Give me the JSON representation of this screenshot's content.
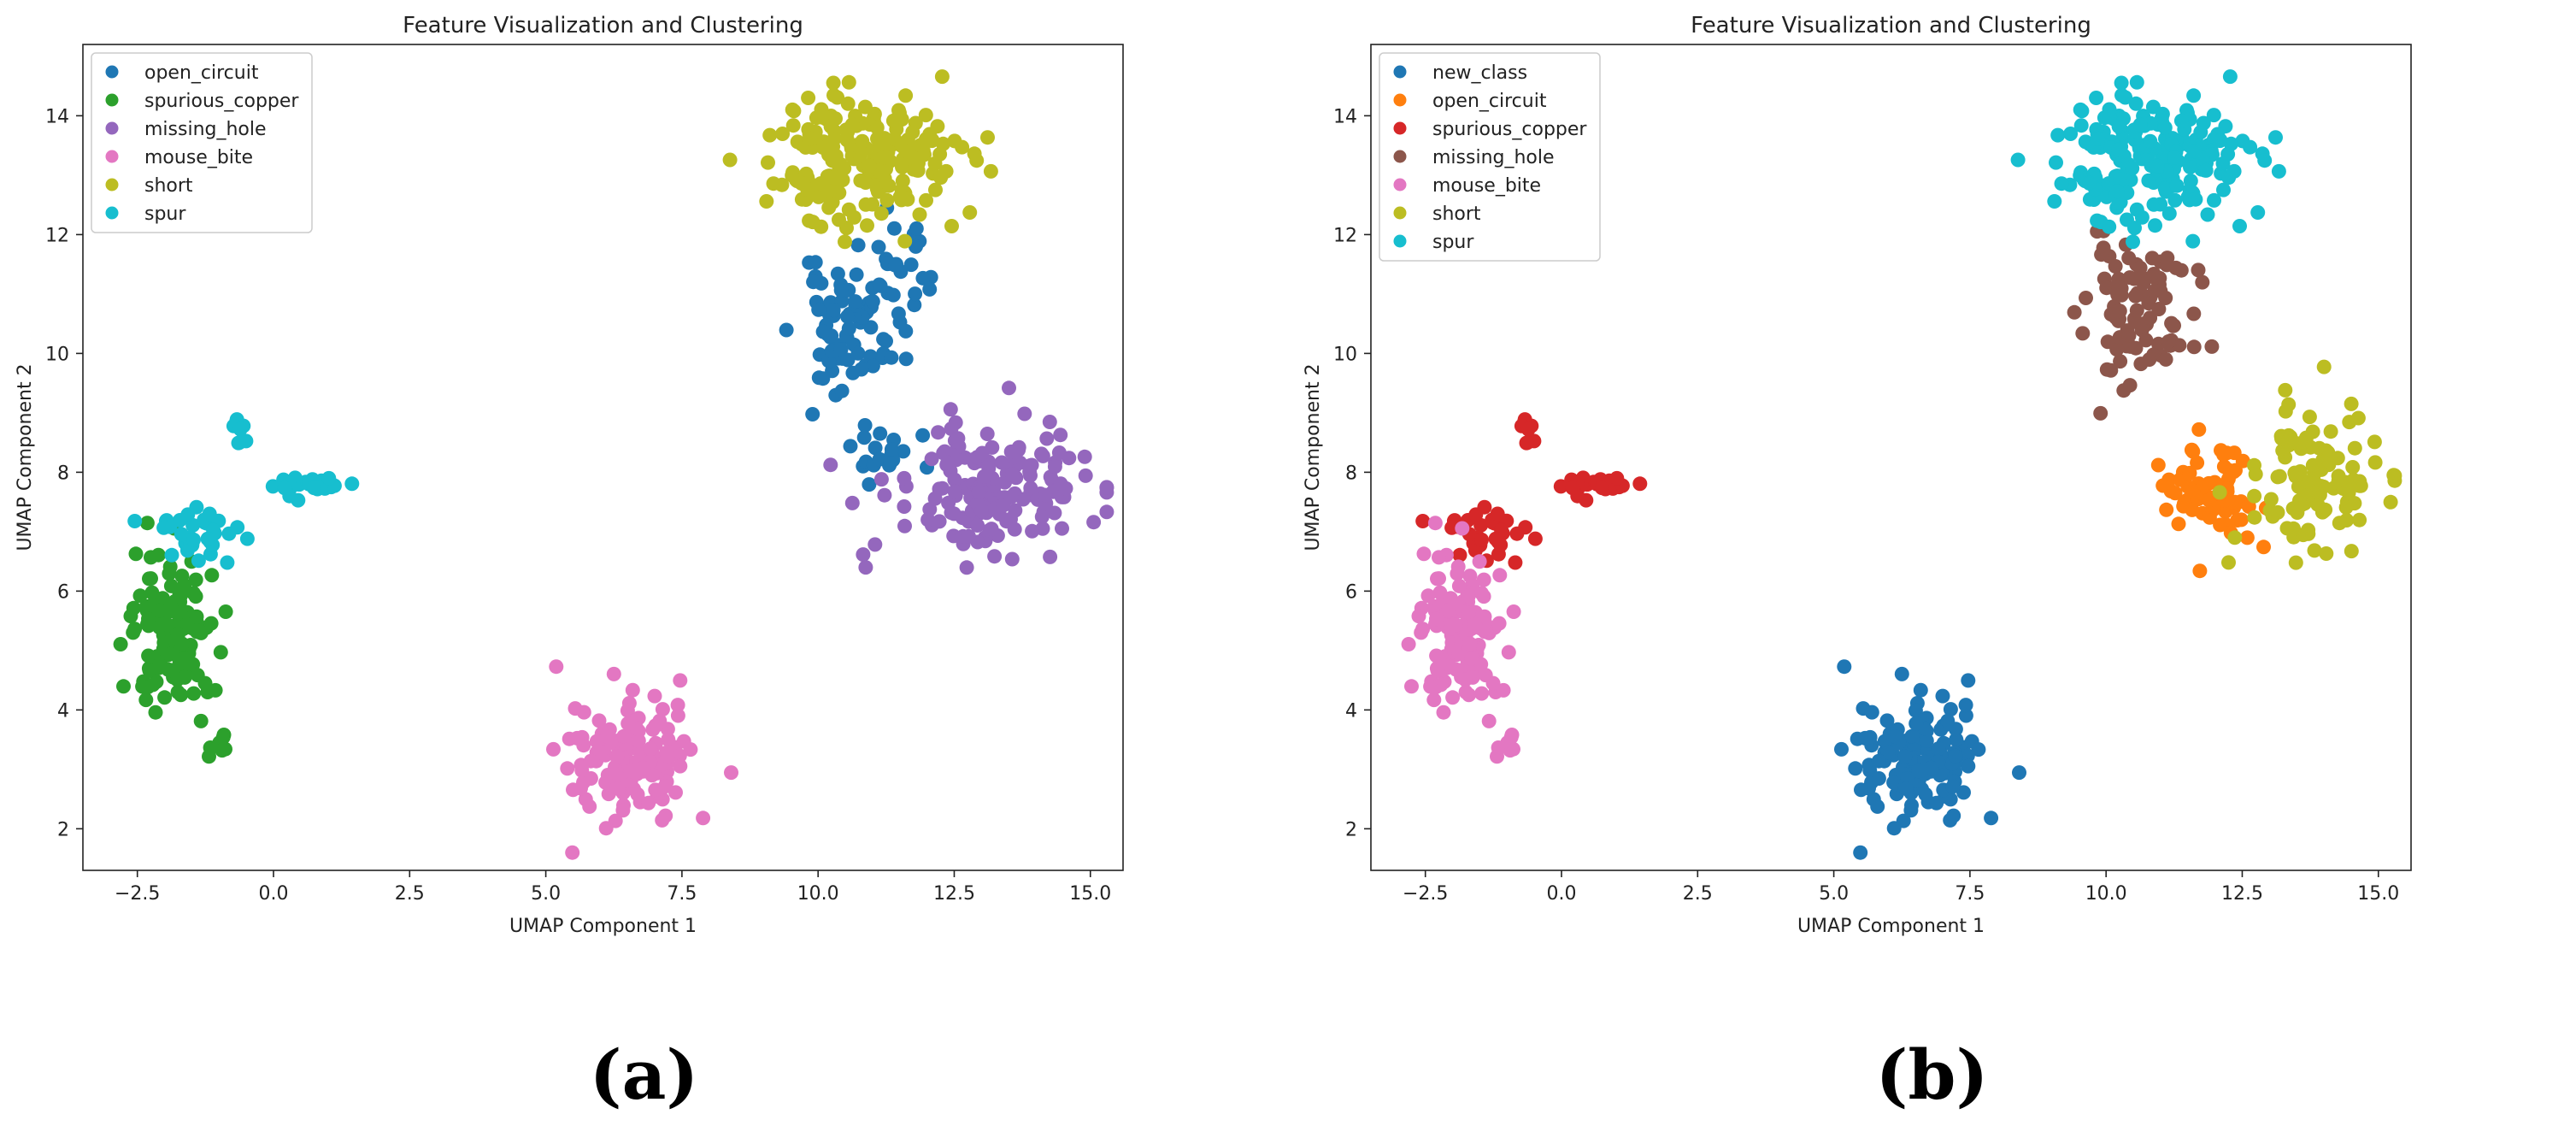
{
  "chart_data": [
    {
      "panel_label": "(a)",
      "type": "scatter",
      "title": "Feature Visualization and Clustering",
      "xlabel": "UMAP Component 1",
      "ylabel": "UMAP Component 2",
      "xlim": [
        -3.5,
        15.6
      ],
      "ylim": [
        1.3,
        15.2
      ],
      "xticks": [
        -2.5,
        0.0,
        2.5,
        5.0,
        7.5,
        10.0,
        12.5,
        15.0
      ],
      "xtick_labels": [
        "−2.5",
        "0.0",
        "2.5",
        "5.0",
        "7.5",
        "10.0",
        "12.5",
        "15.0"
      ],
      "yticks": [
        2,
        4,
        6,
        8,
        10,
        12,
        14
      ],
      "ytick_labels": [
        "2",
        "4",
        "6",
        "8",
        "10",
        "12",
        "14"
      ],
      "legend_position": "top-left",
      "series": [
        {
          "name": "open_circuit",
          "color": "#1f77b4",
          "clusters": [
            {
              "cx": 10.6,
              "cy": 10.4,
              "sx": 0.5,
              "sy": 0.5,
              "n": 70,
              "seed": 11
            },
            {
              "cx": 11.3,
              "cy": 11.5,
              "sx": 0.4,
              "sy": 0.4,
              "n": 25,
              "seed": 12
            },
            {
              "cx": 11.1,
              "cy": 8.35,
              "sx": 0.35,
              "sy": 0.2,
              "n": 20,
              "seed": 13
            }
          ]
        },
        {
          "name": "spurious_copper",
          "color": "#2ca02c",
          "clusters": [
            {
              "cx": -1.9,
              "cy": 5.3,
              "sx": 0.4,
              "sy": 0.7,
              "n": 130,
              "seed": 21
            },
            {
              "cx": -1.0,
              "cy": 3.4,
              "sx": 0.1,
              "sy": 0.1,
              "n": 6,
              "seed": 22
            }
          ]
        },
        {
          "name": "missing_hole",
          "color": "#9467bd",
          "clusters": [
            {
              "cx": 13.2,
              "cy": 7.7,
              "sx": 0.9,
              "sy": 0.55,
              "n": 170,
              "seed": 31
            }
          ]
        },
        {
          "name": "mouse_bite",
          "color": "#e377c2",
          "clusters": [
            {
              "cx": 6.6,
              "cy": 3.2,
              "sx": 0.55,
              "sy": 0.55,
              "n": 140,
              "seed": 41
            }
          ]
        },
        {
          "name": "short",
          "color": "#bcbd22",
          "clusters": [
            {
              "cx": 10.7,
              "cy": 13.2,
              "sx": 0.85,
              "sy": 0.55,
              "n": 200,
              "seed": 51
            }
          ]
        },
        {
          "name": "spur",
          "color": "#17becf",
          "clusters": [
            {
              "cx": 0.6,
              "cy": 7.8,
              "sx": 0.45,
              "sy": 0.08,
              "n": 30,
              "seed": 61
            },
            {
              "cx": -1.5,
              "cy": 7.0,
              "sx": 0.5,
              "sy": 0.3,
              "n": 35,
              "seed": 62
            },
            {
              "cx": -0.7,
              "cy": 8.6,
              "sx": 0.1,
              "sy": 0.12,
              "n": 8,
              "seed": 63
            }
          ]
        }
      ]
    },
    {
      "panel_label": "(b)",
      "type": "scatter",
      "title": "Feature Visualization and Clustering",
      "xlabel": "UMAP Component 1",
      "ylabel": "UMAP Component 2",
      "xlim": [
        -3.5,
        15.6
      ],
      "ylim": [
        1.3,
        15.2
      ],
      "xticks": [
        -2.5,
        0.0,
        2.5,
        5.0,
        7.5,
        10.0,
        12.5,
        15.0
      ],
      "xtick_labels": [
        "−2.5",
        "0.0",
        "2.5",
        "5.0",
        "7.5",
        "10.0",
        "12.5",
        "15.0"
      ],
      "yticks": [
        2,
        4,
        6,
        8,
        10,
        12,
        14
      ],
      "ytick_labels": [
        "2",
        "4",
        "6",
        "8",
        "10",
        "12",
        "14"
      ],
      "legend_position": "top-left",
      "series": [
        {
          "name": "new_class",
          "color": "#1f77b4",
          "clusters": [
            {
              "cx": 6.6,
              "cy": 3.2,
              "sx": 0.55,
              "sy": 0.55,
              "n": 140,
              "seed": 41
            }
          ]
        },
        {
          "name": "open_circuit",
          "color": "#ff7f0e",
          "clusters": [
            {
              "cx": 11.9,
              "cy": 7.7,
              "sx": 0.45,
              "sy": 0.45,
              "n": 70,
              "seed": 71
            }
          ]
        },
        {
          "name": "spurious_copper",
          "color": "#d62728",
          "clusters": [
            {
              "cx": 0.6,
              "cy": 7.8,
              "sx": 0.45,
              "sy": 0.08,
              "n": 30,
              "seed": 61
            },
            {
              "cx": -1.5,
              "cy": 7.0,
              "sx": 0.5,
              "sy": 0.3,
              "n": 35,
              "seed": 62
            },
            {
              "cx": -0.7,
              "cy": 8.6,
              "sx": 0.1,
              "sy": 0.12,
              "n": 8,
              "seed": 63
            }
          ]
        },
        {
          "name": "missing_hole",
          "color": "#8c564b",
          "clusters": [
            {
              "cx": 10.6,
              "cy": 10.7,
              "sx": 0.5,
              "sy": 0.6,
              "n": 90,
              "seed": 11
            }
          ]
        },
        {
          "name": "mouse_bite",
          "color": "#e377c2",
          "clusters": [
            {
              "cx": -1.9,
              "cy": 5.3,
              "sx": 0.4,
              "sy": 0.7,
              "n": 130,
              "seed": 21
            },
            {
              "cx": -1.0,
              "cy": 3.4,
              "sx": 0.1,
              "sy": 0.1,
              "n": 6,
              "seed": 22
            }
          ]
        },
        {
          "name": "short",
          "color": "#bcbd22",
          "clusters": [
            {
              "cx": 13.8,
              "cy": 7.9,
              "sx": 0.6,
              "sy": 0.6,
              "n": 110,
              "seed": 31
            }
          ]
        },
        {
          "name": "spur",
          "color": "#17becf",
          "clusters": [
            {
              "cx": 10.7,
              "cy": 13.2,
              "sx": 0.85,
              "sy": 0.55,
              "n": 200,
              "seed": 51
            }
          ]
        }
      ]
    }
  ]
}
